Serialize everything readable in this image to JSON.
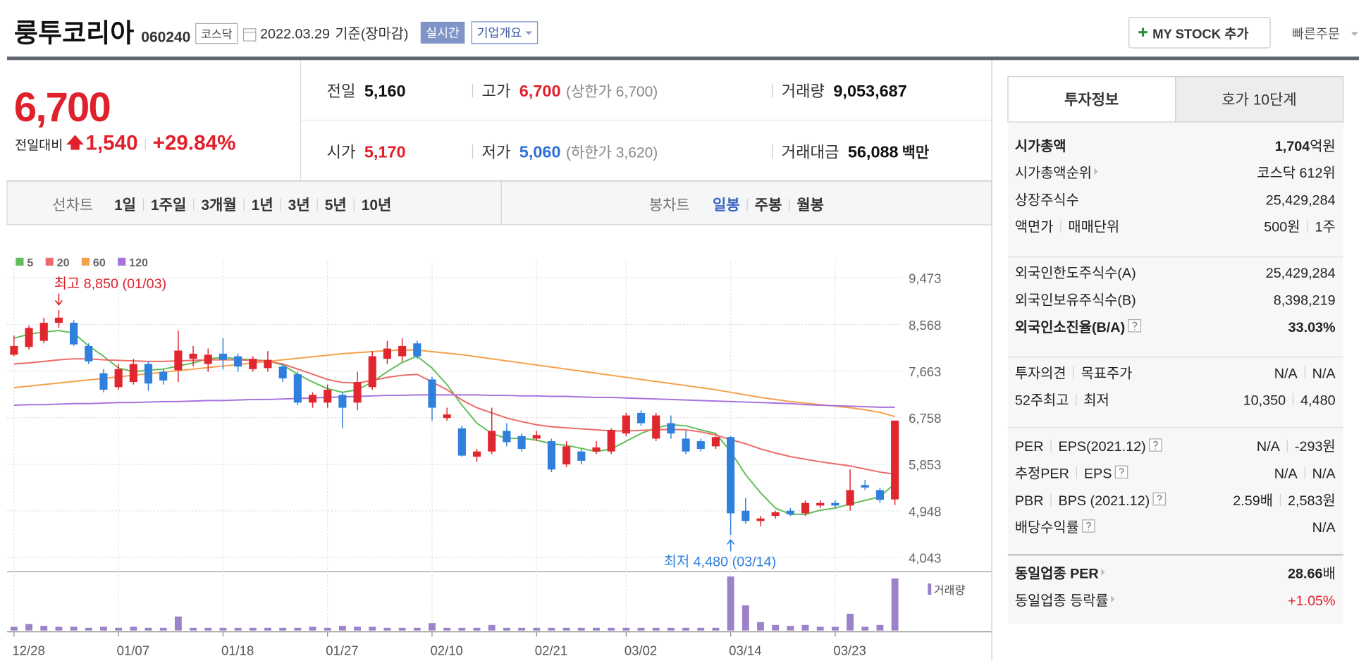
{
  "header": {
    "name": "룽투코리아",
    "code": "060240",
    "market": "코스닥",
    "date": "2022.03.29",
    "basis": "기준(장마감)",
    "realtime": "실시간",
    "company_info": "기업개요",
    "add_stock": "MY STOCK 추가",
    "quick_order": "빠른주문"
  },
  "quote": {
    "price": "6,700",
    "color": "#e0202b",
    "change_label": "전일대비",
    "change": "1,540",
    "change_rate": "+29.84%",
    "items": [
      {
        "label": "전일",
        "value": "5,160"
      },
      {
        "label": "고가",
        "value": "6,700",
        "note": "(상한가 6,700)",
        "color": "#e0202b"
      },
      {
        "label": "거래량",
        "value": "9,053,687"
      },
      {
        "label": "시가",
        "value": "5,170",
        "color": "#e0202b"
      },
      {
        "label": "저가",
        "value": "5,060",
        "note": "(하한가 3,620)",
        "color": "#2e6fd8"
      },
      {
        "label": "거래대금",
        "value": "56,088",
        "unit": "백만"
      }
    ]
  },
  "toolbar": {
    "line_chart": "선차트",
    "periods": [
      "1일",
      "1주일",
      "3개월",
      "1년",
      "3년",
      "5년",
      "10년"
    ],
    "candle_chart": "봉차트",
    "intervals": [
      "일봉",
      "주봉",
      "월봉"
    ],
    "selected_interval": 0
  },
  "panel": {
    "tabs": [
      "투자정보",
      "호가 10단계"
    ],
    "selected_tab": 0,
    "sections": [
      [
        {
          "labels": [
            "시가총액"
          ],
          "values": [
            "1,704"
          ],
          "unit": "억원",
          "bold": true
        },
        {
          "labels": [
            "시가총액순위"
          ],
          "values": [
            "코스닥 612위"
          ],
          "more": true
        },
        {
          "labels": [
            "상장주식수"
          ],
          "values": [
            "25,429,284"
          ]
        },
        {
          "labels": [
            "액면가",
            "매매단위"
          ],
          "values": [
            "500원",
            "1주"
          ]
        }
      ],
      [
        {
          "labels": [
            "외국인한도주식수(A)"
          ],
          "values": [
            "25,429,284"
          ]
        },
        {
          "labels": [
            "외국인보유주식수(B)"
          ],
          "values": [
            "8,398,219"
          ]
        },
        {
          "labels": [
            "외국인소진율(B/A)"
          ],
          "values": [
            "33.03%"
          ],
          "bold": true,
          "help": true
        }
      ],
      [
        {
          "labels": [
            "투자의견",
            "목표주가"
          ],
          "values": [
            "N/A",
            "N/A"
          ]
        },
        {
          "labels": [
            "52주최고",
            "최저"
          ],
          "values": [
            "10,350",
            "4,480"
          ]
        }
      ],
      [
        {
          "labels": [
            "PER",
            "EPS(2021.12)"
          ],
          "values": [
            "N/A",
            "-293원"
          ],
          "help": true
        },
        {
          "labels": [
            "추정PER",
            "EPS"
          ],
          "values": [
            "N/A",
            "N/A"
          ],
          "help": true
        },
        {
          "labels": [
            "PBR",
            "BPS (2021.12)"
          ],
          "values": [
            "2.59배",
            "2,583원"
          ],
          "help": true
        },
        {
          "labels": [
            "배당수익률"
          ],
          "values": [
            "N/A"
          ],
          "help": true
        }
      ],
      [
        {
          "labels": [
            "동일업종 PER"
          ],
          "values": [
            "28.66"
          ],
          "unit": "배",
          "bold": true,
          "more": true
        },
        {
          "labels": [
            "동일업종 등락률"
          ],
          "values": [
            "+1.05%"
          ],
          "more": true,
          "color": "#e0202b"
        }
      ]
    ]
  },
  "chart_data": {
    "type": "candlestick",
    "up_color": "#e0262e",
    "down_color": "#2f7fdc",
    "grid": true,
    "categories": [
      "12/28",
      null,
      null,
      null,
      null,
      null,
      null,
      "01/07",
      null,
      null,
      null,
      null,
      null,
      null,
      "01/18",
      null,
      null,
      null,
      null,
      null,
      null,
      "01/27",
      null,
      null,
      null,
      null,
      null,
      null,
      "02/10",
      null,
      null,
      null,
      null,
      null,
      null,
      "02/21",
      null,
      null,
      null,
      null,
      null,
      "03/02",
      null,
      null,
      null,
      null,
      null,
      null,
      "03/14",
      null,
      null,
      null,
      null,
      null,
      null,
      "03/23",
      null,
      null,
      null,
      null
    ],
    "open": [
      7980,
      8130,
      8250,
      8600,
      8600,
      8150,
      7620,
      7350,
      7450,
      7800,
      7650,
      7680,
      7900,
      7800,
      8000,
      7950,
      7700,
      7720,
      7750,
      7600,
      7050,
      7050,
      7200,
      7050,
      7350,
      7900,
      7950,
      8200,
      7500,
      6750,
      6550,
      6000,
      6100,
      6500,
      6400,
      6350,
      6300,
      5850,
      6100,
      6100,
      6100,
      6450,
      6850,
      6350,
      6650,
      6350,
      6300,
      6200,
      6380,
      4950,
      4750,
      4850,
      4950,
      4900,
      5050,
      5100,
      5050,
      5450,
      5350,
      5170
    ],
    "high": [
      8350,
      8550,
      8700,
      8850,
      8650,
      8200,
      7700,
      7800,
      7900,
      7850,
      7700,
      8450,
      8150,
      8100,
      8300,
      8000,
      7950,
      8050,
      7800,
      7650,
      7250,
      7400,
      7250,
      7650,
      8050,
      8250,
      8300,
      8250,
      7550,
      6950,
      6600,
      6150,
      6950,
      6650,
      6450,
      6500,
      6350,
      6300,
      6150,
      6300,
      6550,
      6850,
      6900,
      6850,
      6800,
      6500,
      6350,
      6400,
      6400,
      5200,
      4850,
      4950,
      5000,
      5150,
      5150,
      5150,
      5750,
      5550,
      5400,
      6700
    ],
    "low": [
      7950,
      8080,
      8200,
      8500,
      8150,
      7800,
      7250,
      7300,
      7400,
      7280,
      7400,
      7450,
      7750,
      7650,
      7700,
      7650,
      7650,
      7650,
      7450,
      7000,
      6950,
      6950,
      6550,
      6900,
      7300,
      7800,
      7850,
      7900,
      6700,
      6700,
      6000,
      5900,
      6050,
      6200,
      6100,
      6300,
      5700,
      5800,
      5850,
      6050,
      6050,
      6400,
      6600,
      6300,
      6350,
      6050,
      6100,
      6150,
      4480,
      4700,
      4650,
      4800,
      4850,
      4850,
      5000,
      5000,
      4950,
      5350,
      5100,
      5060
    ],
    "close": [
      8150,
      8500,
      8600,
      8700,
      8180,
      7850,
      7300,
      7700,
      7800,
      7420,
      7480,
      8060,
      8000,
      7980,
      7880,
      7750,
      7900,
      7880,
      7520,
      7050,
      7200,
      7300,
      6950,
      7450,
      7950,
      8100,
      8150,
      7950,
      6950,
      6820,
      6020,
      6100,
      6500,
      6280,
      6150,
      6420,
      5750,
      6200,
      5920,
      6180,
      6520,
      6800,
      6650,
      6800,
      6450,
      6100,
      6150,
      6380,
      4900,
      4750,
      4800,
      4920,
      4880,
      5100,
      5100,
      5050,
      5350,
      5400,
      5160,
      6700
    ],
    "series": [
      {
        "name": "5",
        "color": "#62bd58",
        "values": [
          8300,
          8380,
          8420,
          8450,
          8400,
          8150,
          7950,
          7720,
          7650,
          7680,
          7700,
          7760,
          7820,
          7900,
          7930,
          7900,
          7880,
          7860,
          7780,
          7600,
          7450,
          7320,
          7250,
          7300,
          7450,
          7650,
          7830,
          7950,
          7720,
          7400,
          7000,
          6650,
          6450,
          6350,
          6360,
          6320,
          6250,
          6220,
          6160,
          6100,
          6150,
          6300,
          6450,
          6560,
          6620,
          6600,
          6520,
          6450,
          6100,
          5650,
          5300,
          5000,
          4880,
          4880,
          4960,
          5000,
          5080,
          5150,
          5220,
          5480
        ]
      },
      {
        "name": "20",
        "color": "#ee6a6a",
        "values": [
          7800,
          7820,
          7850,
          7880,
          7900,
          7900,
          7880,
          7870,
          7860,
          7850,
          7850,
          7860,
          7870,
          7880,
          7880,
          7880,
          7870,
          7850,
          7800,
          7700,
          7600,
          7500,
          7440,
          7430,
          7480,
          7540,
          7580,
          7600,
          7450,
          7300,
          7100,
          6950,
          6850,
          6750,
          6680,
          6620,
          6580,
          6560,
          6540,
          6520,
          6500,
          6500,
          6510,
          6520,
          6530,
          6520,
          6480,
          6420,
          6330,
          6250,
          6150,
          6070,
          6000,
          5950,
          5900,
          5860,
          5820,
          5760,
          5700,
          5660
        ]
      },
      {
        "name": "60",
        "color": "#f5a04a",
        "values": [
          7340,
          7370,
          7400,
          7430,
          7460,
          7490,
          7520,
          7550,
          7580,
          7610,
          7640,
          7670,
          7700,
          7730,
          7760,
          7790,
          7820,
          7850,
          7880,
          7910,
          7940,
          7970,
          8000,
          8020,
          8040,
          8060,
          8070,
          8070,
          8040,
          8010,
          7980,
          7940,
          7900,
          7860,
          7820,
          7780,
          7740,
          7700,
          7660,
          7620,
          7580,
          7540,
          7500,
          7460,
          7420,
          7380,
          7340,
          7300,
          7250,
          7200,
          7150,
          7110,
          7070,
          7040,
          7010,
          6980,
          6950,
          6910,
          6860,
          6780
        ]
      },
      {
        "name": "120",
        "color": "#a872de",
        "values": [
          7000,
          7010,
          7010,
          7020,
          7030,
          7030,
          7040,
          7050,
          7050,
          7060,
          7070,
          7070,
          7080,
          7090,
          7090,
          7100,
          7110,
          7110,
          7120,
          7130,
          7140,
          7150,
          7160,
          7170,
          7180,
          7190,
          7190,
          7200,
          7200,
          7200,
          7200,
          7200,
          7190,
          7190,
          7180,
          7180,
          7170,
          7170,
          7160,
          7150,
          7150,
          7140,
          7130,
          7120,
          7110,
          7100,
          7090,
          7080,
          7070,
          7060,
          7050,
          7040,
          7030,
          7010,
          7000,
          6990,
          6980,
          6970,
          6960,
          6960
        ]
      }
    ],
    "volume": {
      "name": "거래량",
      "color": "#9b82c9",
      "values": [
        650000,
        1130000,
        810000,
        650000,
        650000,
        480000,
        650000,
        480000,
        650000,
        480000,
        480000,
        2430000,
        480000,
        480000,
        480000,
        480000,
        480000,
        480000,
        480000,
        480000,
        650000,
        480000,
        810000,
        650000,
        650000,
        480000,
        480000,
        480000,
        1290000,
        480000,
        480000,
        480000,
        970000,
        480000,
        480000,
        480000,
        480000,
        480000,
        480000,
        480000,
        480000,
        480000,
        480000,
        480000,
        480000,
        480000,
        480000,
        480000,
        9380000,
        4370000,
        1460000,
        970000,
        810000,
        970000,
        650000,
        650000,
        2910000,
        650000,
        970000,
        9053687
      ]
    },
    "ylim": [
      3790,
      9795
    ],
    "yticks": [
      {
        "value": 4043,
        "label": "4,043"
      },
      {
        "value": 4948,
        "label": "4,948"
      },
      {
        "value": 5853,
        "label": "5,853"
      },
      {
        "value": 6758,
        "label": "6,758"
      },
      {
        "value": 7663,
        "label": "7,663"
      },
      {
        "value": 8568,
        "label": "8,568"
      },
      {
        "value": 9473,
        "label": "9,473"
      }
    ],
    "annotations": [
      {
        "text": "최고 8,850 (01/03)",
        "color": "#e0202b"
      },
      {
        "text": "최저 4,480 (03/14)",
        "color": "#2e7fde"
      }
    ]
  }
}
